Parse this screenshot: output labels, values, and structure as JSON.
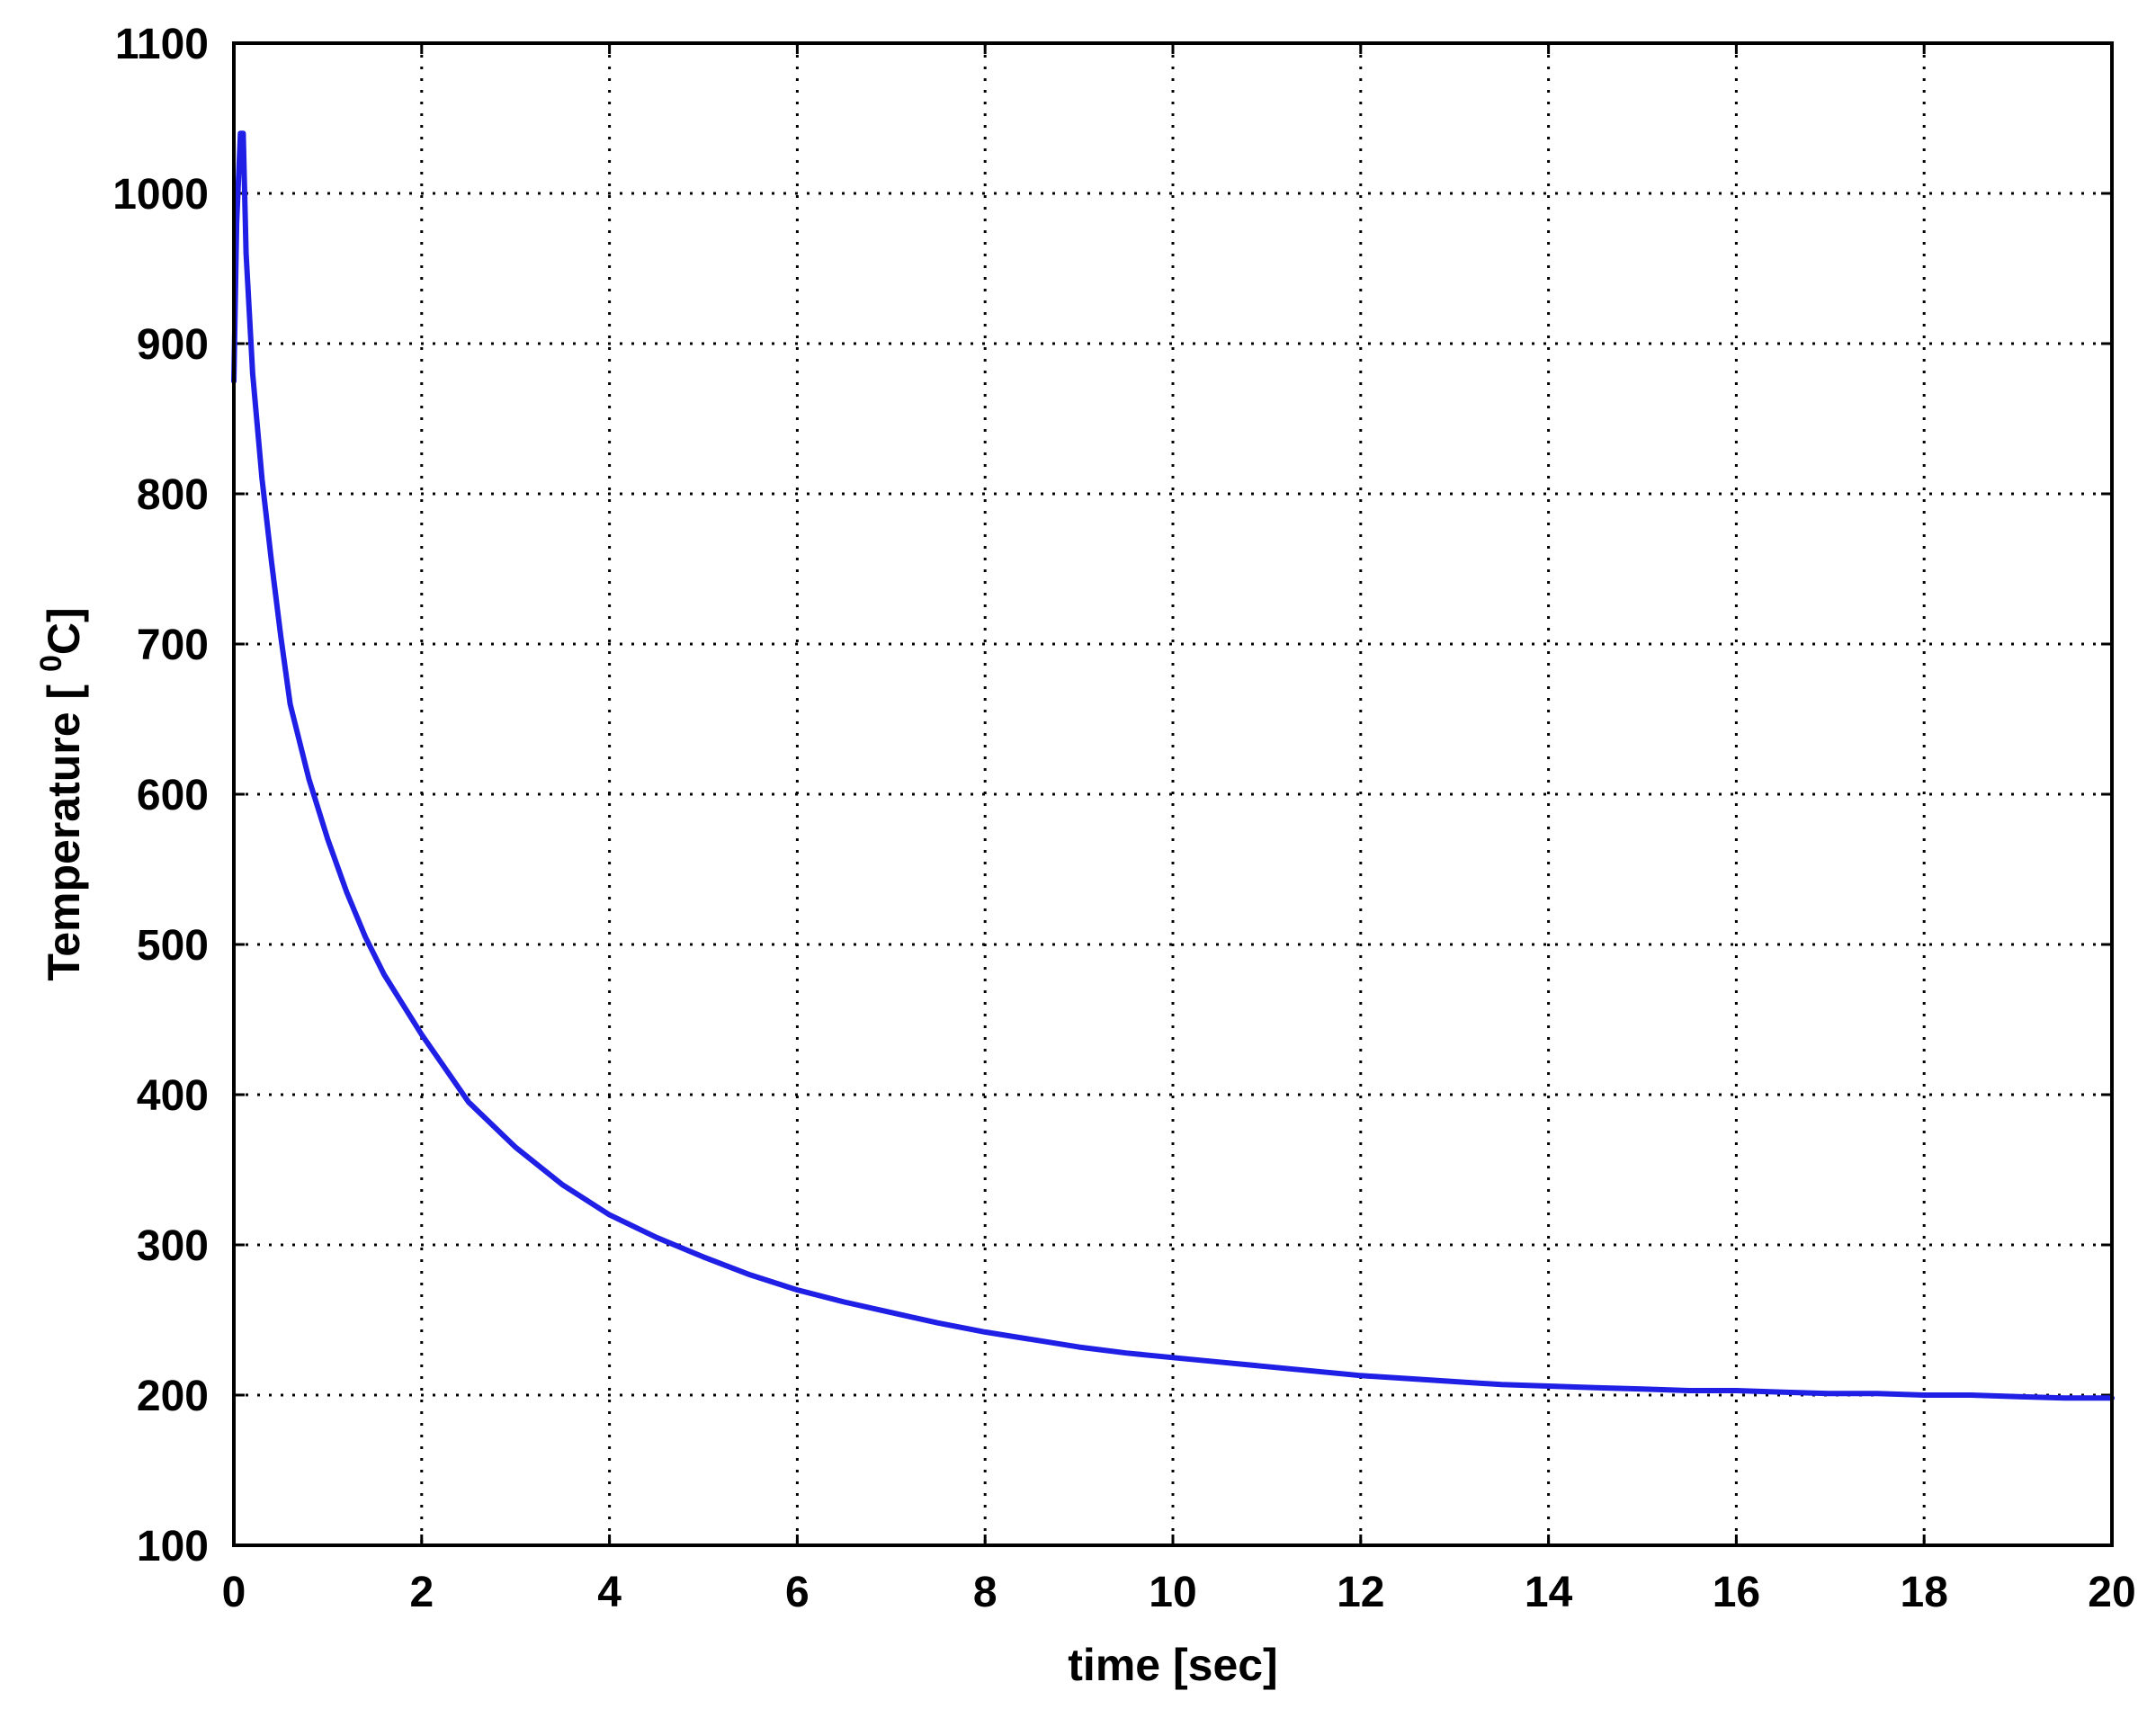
{
  "chart_data": {
    "type": "line",
    "title": "",
    "xlabel": "time [sec]",
    "ylabel_parts": {
      "before": "Temperature [ ",
      "superscript": "0",
      "after": "C]"
    },
    "xlim": [
      0,
      20
    ],
    "ylim": [
      100,
      1100
    ],
    "xticks": [
      "0",
      "2",
      "4",
      "6",
      "8",
      "10",
      "12",
      "14",
      "16",
      "18",
      "20"
    ],
    "yticks": [
      "100",
      "200",
      "300",
      "400",
      "500",
      "600",
      "700",
      "800",
      "900",
      "1000",
      "1100"
    ],
    "grid": true,
    "legend": "none",
    "series": [
      {
        "color": "#1f1fe6",
        "x": [
          0,
          0.03,
          0.07,
          0.1,
          0.13,
          0.2,
          0.3,
          0.4,
          0.5,
          0.6,
          0.8,
          1.0,
          1.2,
          1.4,
          1.6,
          1.8,
          2.0,
          2.5,
          3.0,
          3.5,
          4.0,
          4.5,
          5.0,
          5.5,
          6.0,
          6.5,
          7.0,
          7.5,
          8.0,
          8.5,
          9.0,
          9.5,
          10.0,
          10.5,
          11.0,
          11.5,
          12.0,
          12.5,
          13.0,
          13.5,
          14.0,
          14.5,
          15.0,
          15.5,
          16.0,
          16.5,
          17.0,
          17.5,
          18.0,
          18.5,
          19.0,
          19.5,
          20.0
        ],
        "y": [
          875,
          980,
          1040,
          1040,
          960,
          880,
          810,
          755,
          705,
          660,
          610,
          570,
          535,
          505,
          480,
          460,
          440,
          395,
          365,
          340,
          320,
          305,
          292,
          280,
          270,
          262,
          255,
          248,
          242,
          237,
          232,
          228,
          225,
          222,
          219,
          216,
          213,
          211,
          209,
          207,
          206,
          205,
          204,
          203,
          203,
          202,
          201,
          201,
          200,
          200,
          199,
          198,
          198
        ]
      }
    ]
  }
}
